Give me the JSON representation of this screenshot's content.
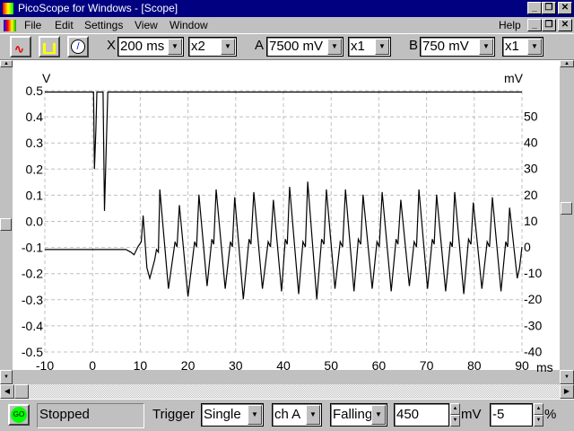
{
  "window": {
    "title": "PicoScope for Windows - [Scope]"
  },
  "menu": {
    "items": [
      "File",
      "Edit",
      "Settings",
      "View",
      "Window"
    ],
    "help": "Help"
  },
  "toolbar": {
    "x_label": "X",
    "timebase": "200 ms",
    "x_mult": "x2",
    "a_label": "A",
    "a_range": "7500 mV",
    "a_mult": "x1",
    "b_label": "B",
    "b_range": "750 mV",
    "b_mult": "x1"
  },
  "status": {
    "go": "GO",
    "state": "Stopped",
    "trigger_label": "Trigger",
    "trigger_mode": "Single",
    "trigger_channel": "ch A",
    "trigger_edge": "Falling",
    "trigger_level": "450",
    "level_unit": "mV",
    "pretrigger": "-5",
    "pretrigger_unit": "%"
  },
  "colors": {
    "trace": "#000000",
    "grid": "#c0c0c0",
    "titlebar": "#000080",
    "go": "#00ff00"
  },
  "chart_data": {
    "type": "line",
    "xlabel": "ms",
    "ylabel_left": "V",
    "ylabel_right": "mV",
    "xlim": [
      -10,
      90
    ],
    "ylim_left": [
      -0.5,
      0.5
    ],
    "ylim_right": [
      -40,
      50
    ],
    "x_ticks": [
      "-10",
      "0",
      "10",
      "20",
      "30",
      "40",
      "50",
      "60",
      "70",
      "80",
      "90"
    ],
    "y_left_ticks": [
      "0.5",
      "0.4",
      "0.3",
      "0.2",
      "0.1",
      "0.0",
      "-0.1",
      "-0.2",
      "-0.3",
      "-0.4",
      "-0.5"
    ],
    "y_right_ticks": [
      "50",
      "40",
      "30",
      "20",
      "10",
      "0",
      "-10",
      "-20",
      "-30",
      "-40"
    ],
    "grid": true,
    "series": [
      {
        "axis": "left",
        "points": [
          [
            -10,
            0.495
          ],
          [
            0.2,
            0.495
          ],
          [
            0.4,
            0.2
          ],
          [
            0.7,
            0.35
          ],
          [
            0.9,
            0.495
          ],
          [
            2.2,
            0.495
          ],
          [
            2.5,
            0.04
          ],
          [
            2.9,
            0.3
          ],
          [
            3.2,
            0.495
          ],
          [
            90,
            0.495
          ]
        ]
      },
      {
        "axis": "right",
        "points": [
          [
            -10,
            -1
          ],
          [
            7,
            -1
          ],
          [
            8,
            -2
          ],
          [
            8.7,
            -3
          ],
          [
            9.5,
            0
          ],
          [
            10.2,
            2
          ],
          [
            10.6,
            12
          ],
          [
            11.4,
            -8
          ],
          [
            12,
            -12
          ],
          [
            13,
            -5
          ],
          [
            13.4,
            -1
          ],
          [
            13.8,
            -2
          ],
          [
            14.1,
            22
          ],
          [
            15.9,
            -16
          ],
          [
            17.3,
            2
          ],
          [
            17.7,
            0
          ],
          [
            18.2,
            16
          ],
          [
            20.0,
            -19
          ],
          [
            21.4,
            2
          ],
          [
            21.8,
            0
          ],
          [
            22.3,
            20
          ],
          [
            24.0,
            -15
          ],
          [
            25.0,
            3
          ],
          [
            25.4,
            1
          ],
          [
            25.9,
            22
          ],
          [
            27.8,
            -16
          ],
          [
            28.9,
            2
          ],
          [
            29.3,
            0
          ],
          [
            29.8,
            19
          ],
          [
            31.6,
            -20
          ],
          [
            32.8,
            3
          ],
          [
            33.2,
            1
          ],
          [
            33.8,
            21
          ],
          [
            35.6,
            -16
          ],
          [
            36.8,
            2
          ],
          [
            37.3,
            0
          ],
          [
            37.9,
            18
          ],
          [
            39.6,
            -17
          ],
          [
            40.4,
            3
          ],
          [
            40.8,
            1
          ],
          [
            41.3,
            23
          ],
          [
            43.2,
            -18
          ],
          [
            44.1,
            2
          ],
          [
            44.6,
            0
          ],
          [
            45.1,
            25
          ],
          [
            47.0,
            -20
          ],
          [
            48.0,
            3
          ],
          [
            48.5,
            1
          ],
          [
            49.0,
            22
          ],
          [
            50.8,
            -16
          ],
          [
            51.9,
            2
          ],
          [
            52.4,
            0
          ],
          [
            53.0,
            22
          ],
          [
            54.8,
            -17
          ],
          [
            55.7,
            3
          ],
          [
            56.2,
            1
          ],
          [
            56.7,
            20
          ],
          [
            58.6,
            -16
          ],
          [
            59.6,
            2
          ],
          [
            60.1,
            0
          ],
          [
            60.7,
            21
          ],
          [
            62.6,
            -17
          ],
          [
            63.6,
            3
          ],
          [
            64.0,
            1
          ],
          [
            64.6,
            18
          ],
          [
            66.4,
            -15
          ],
          [
            67.4,
            2
          ],
          [
            67.9,
            0
          ],
          [
            68.4,
            22
          ],
          [
            70.2,
            -16
          ],
          [
            71.2,
            3
          ],
          [
            71.6,
            1
          ],
          [
            72.1,
            20
          ],
          [
            74.0,
            -17
          ],
          [
            75.0,
            2
          ],
          [
            75.4,
            0
          ],
          [
            75.9,
            21
          ],
          [
            77.8,
            -18
          ],
          [
            78.8,
            3
          ],
          [
            79.3,
            1
          ],
          [
            79.8,
            17
          ],
          [
            81.6,
            -16
          ],
          [
            82.7,
            2
          ],
          [
            83.2,
            0
          ],
          [
            83.8,
            19
          ],
          [
            85.6,
            -17
          ],
          [
            86.6,
            2
          ],
          [
            87.0,
            0
          ],
          [
            87.4,
            15
          ],
          [
            89.0,
            -12
          ],
          [
            89.5,
            -8
          ],
          [
            90,
            0
          ]
        ]
      }
    ]
  }
}
